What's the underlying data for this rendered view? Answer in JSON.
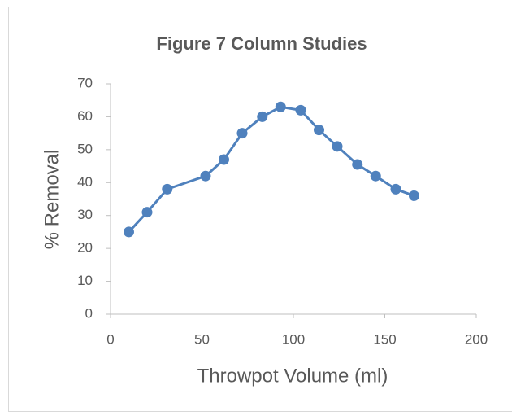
{
  "chart_data": {
    "type": "line",
    "title": "Figure 7 Column Studies",
    "x_label": "Throwpot Volume (ml)",
    "y_label": "% Removal",
    "series": [
      {
        "name": "% Removal",
        "color": "#4f81bd",
        "x": [
          10,
          20,
          31,
          52,
          62,
          72,
          83,
          93,
          104,
          114,
          124,
          135,
          145,
          156,
          166
        ],
        "values": [
          25,
          31,
          38,
          42,
          47,
          55,
          60,
          63,
          62,
          56,
          51,
          45.5,
          42,
          38,
          36
        ]
      }
    ],
    "xlim": [
      0,
      200
    ],
    "xticks": [
      0,
      50,
      100,
      150,
      200
    ],
    "ylim": [
      0,
      70
    ],
    "yticks": [
      0,
      10,
      20,
      30,
      40,
      50,
      60,
      70
    ]
  }
}
